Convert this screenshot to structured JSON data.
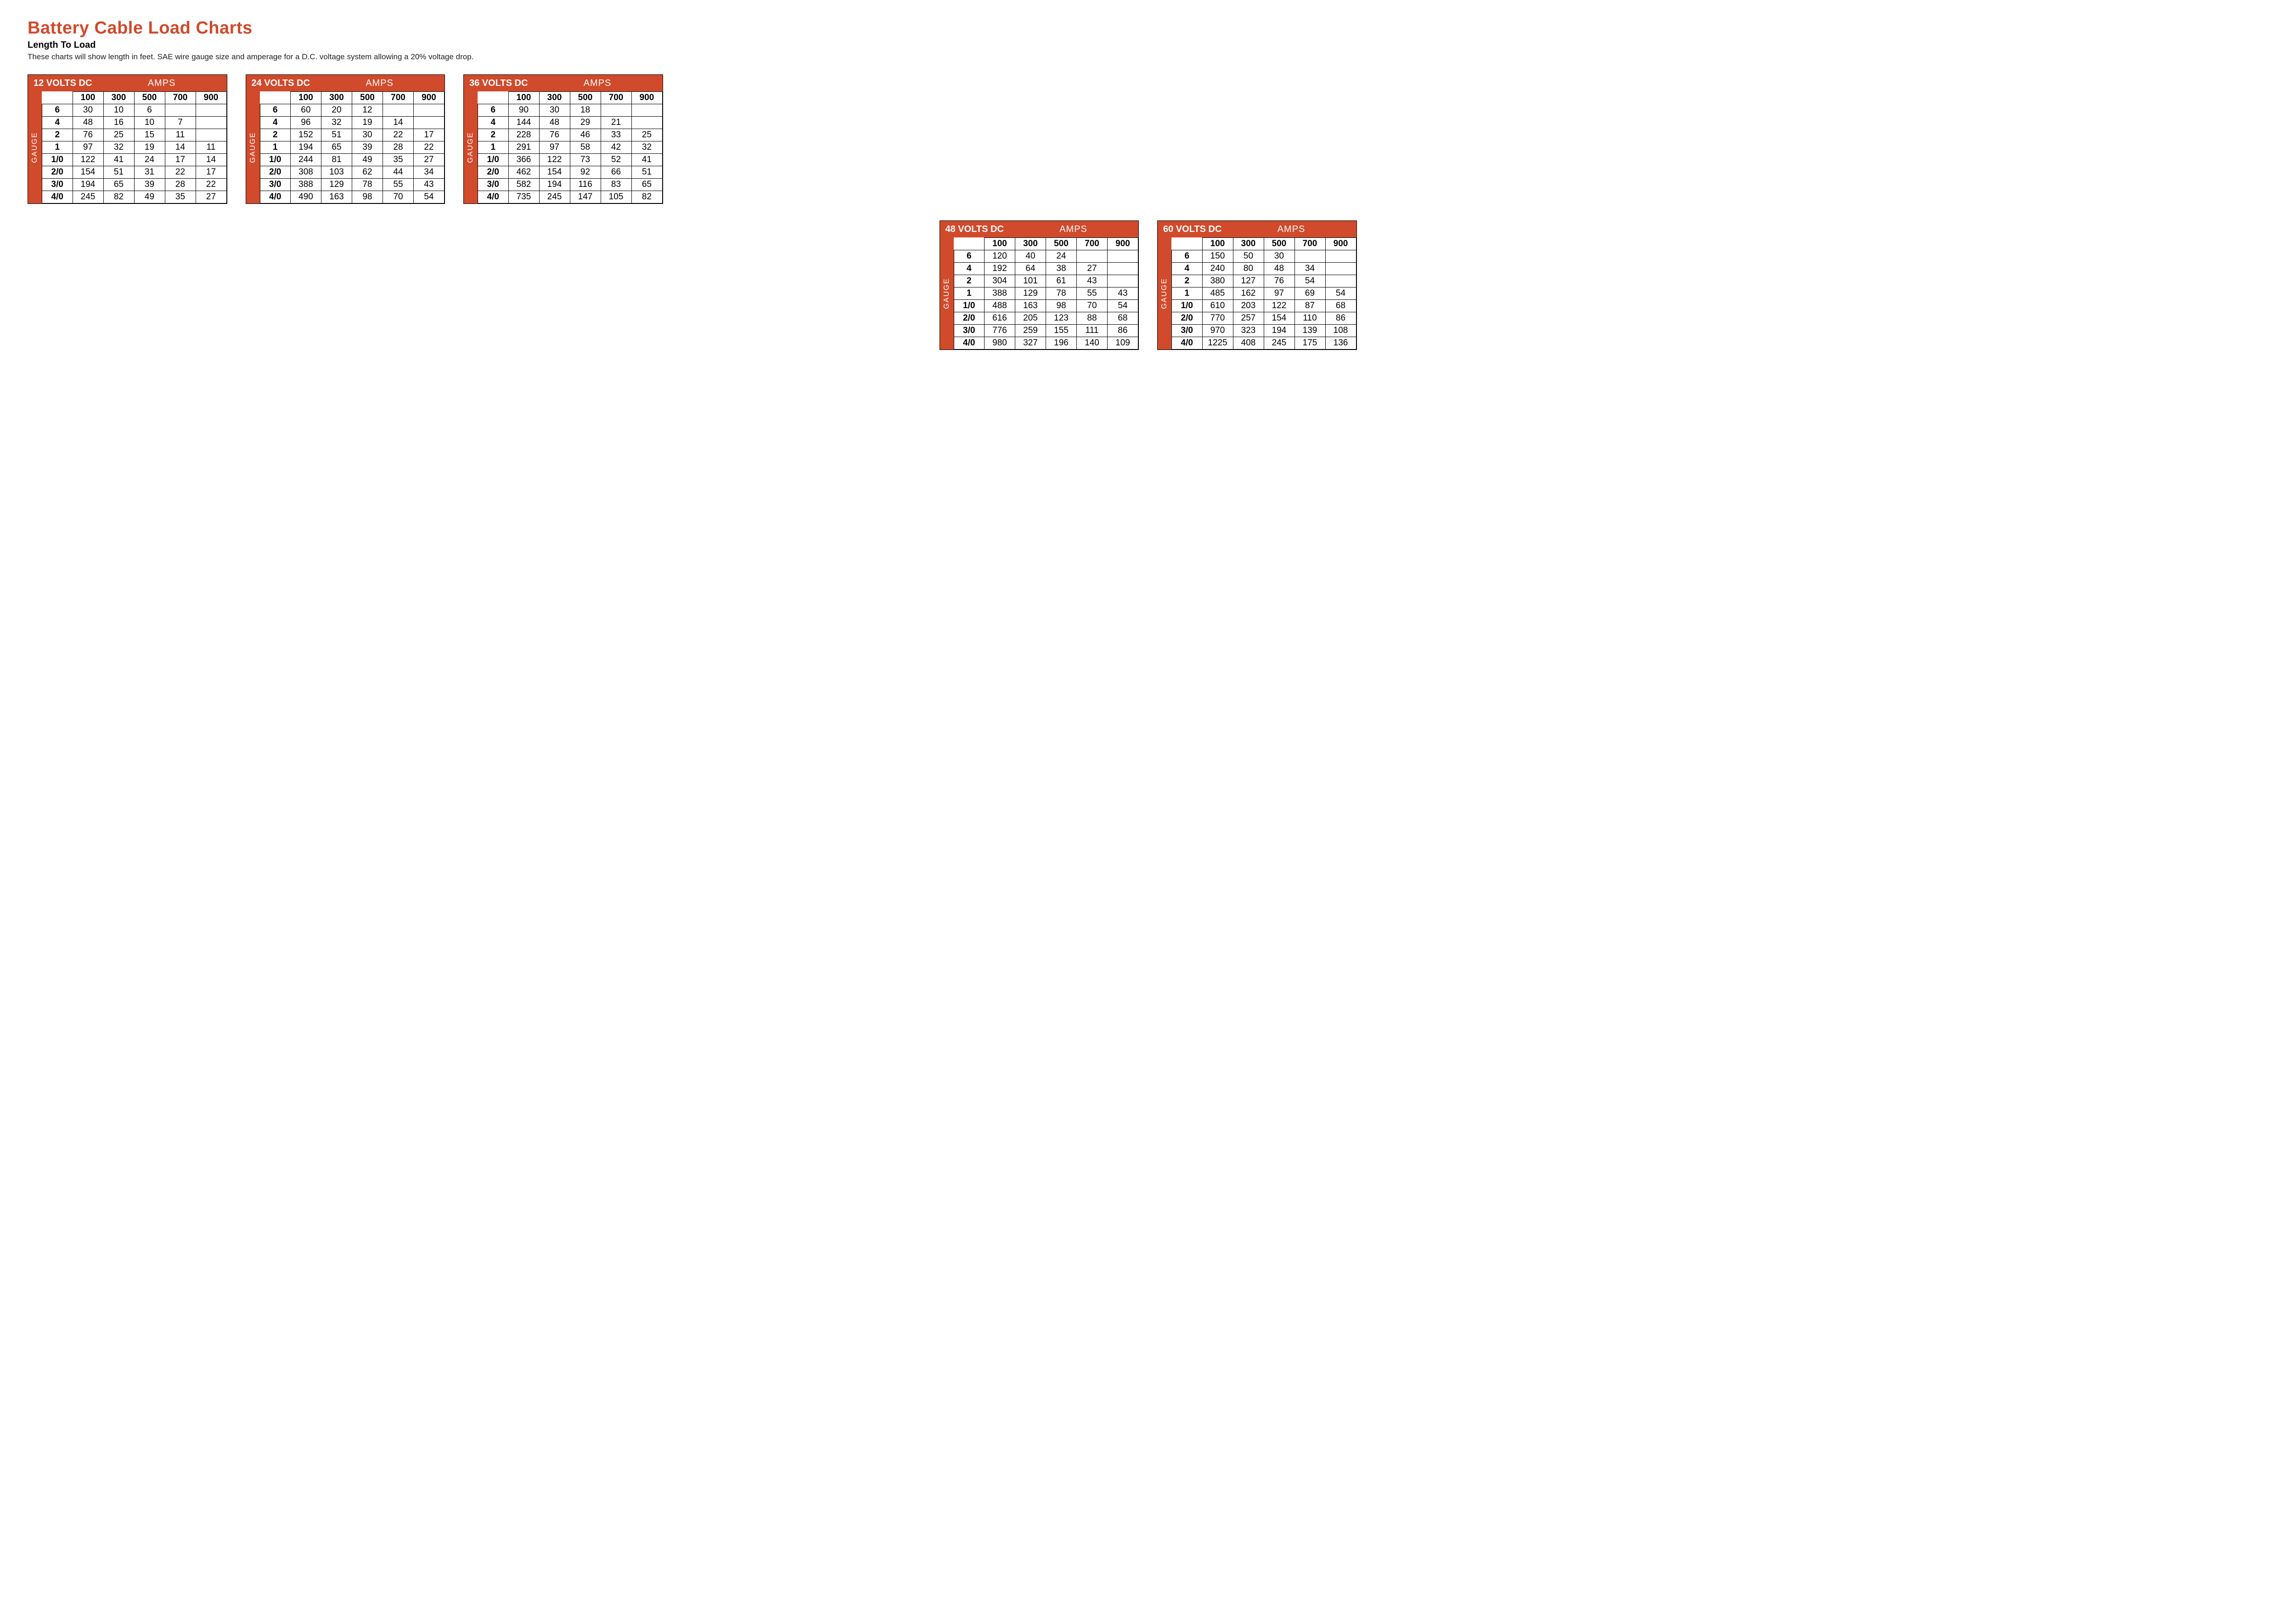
{
  "title": "Battery Cable Load Charts",
  "subtitle": "Length To Load",
  "intro": "These charts will show length in feet. SAE wire gauge size and amperage for a D.C. voltage system allowing a 20% voltage drop.",
  "colors": {
    "accent": "#d04a2b",
    "text": "#000000",
    "bg": "#ffffff",
    "border": "#000000"
  },
  "amps_label": "AMPS",
  "gauge_label": "GAUGE",
  "amps_header": [
    "100",
    "300",
    "500",
    "700",
    "900"
  ],
  "gauges": [
    "6",
    "4",
    "2",
    "1",
    "1/0",
    "2/0",
    "3/0",
    "4/0"
  ],
  "tables": [
    {
      "volt_label": "12  VOLTS DC",
      "rows": [
        [
          "30",
          "10",
          "6",
          "",
          ""
        ],
        [
          "48",
          "16",
          "10",
          "7",
          ""
        ],
        [
          "76",
          "25",
          "15",
          "11",
          ""
        ],
        [
          "97",
          "32",
          "19",
          "14",
          "11"
        ],
        [
          "122",
          "41",
          "24",
          "17",
          "14"
        ],
        [
          "154",
          "51",
          "31",
          "22",
          "17"
        ],
        [
          "194",
          "65",
          "39",
          "28",
          "22"
        ],
        [
          "245",
          "82",
          "49",
          "35",
          "27"
        ]
      ]
    },
    {
      "volt_label": "24  VOLTS DC",
      "rows": [
        [
          "60",
          "20",
          "12",
          "",
          ""
        ],
        [
          "96",
          "32",
          "19",
          "14",
          ""
        ],
        [
          "152",
          "51",
          "30",
          "22",
          "17"
        ],
        [
          "194",
          "65",
          "39",
          "28",
          "22"
        ],
        [
          "244",
          "81",
          "49",
          "35",
          "27"
        ],
        [
          "308",
          "103",
          "62",
          "44",
          "34"
        ],
        [
          "388",
          "129",
          "78",
          "55",
          "43"
        ],
        [
          "490",
          "163",
          "98",
          "70",
          "54"
        ]
      ]
    },
    {
      "volt_label": "36  VOLTS DC",
      "rows": [
        [
          "90",
          "30",
          "18",
          "",
          ""
        ],
        [
          "144",
          "48",
          "29",
          "21",
          ""
        ],
        [
          "228",
          "76",
          "46",
          "33",
          "25"
        ],
        [
          "291",
          "97",
          "58",
          "42",
          "32"
        ],
        [
          "366",
          "122",
          "73",
          "52",
          "41"
        ],
        [
          "462",
          "154",
          "92",
          "66",
          "51"
        ],
        [
          "582",
          "194",
          "116",
          "83",
          "65"
        ],
        [
          "735",
          "245",
          "147",
          "105",
          "82"
        ]
      ]
    },
    {
      "volt_label": "48  VOLTS DC",
      "rows": [
        [
          "120",
          "40",
          "24",
          "",
          ""
        ],
        [
          "192",
          "64",
          "38",
          "27",
          ""
        ],
        [
          "304",
          "101",
          "61",
          "43",
          ""
        ],
        [
          "388",
          "129",
          "78",
          "55",
          "43"
        ],
        [
          "488",
          "163",
          "98",
          "70",
          "54"
        ],
        [
          "616",
          "205",
          "123",
          "88",
          "68"
        ],
        [
          "776",
          "259",
          "155",
          "111",
          "86"
        ],
        [
          "980",
          "327",
          "196",
          "140",
          "109"
        ]
      ]
    },
    {
      "volt_label": "60  VOLTS DC",
      "rows": [
        [
          "150",
          "50",
          "30",
          "",
          ""
        ],
        [
          "240",
          "80",
          "48",
          "34",
          ""
        ],
        [
          "380",
          "127",
          "76",
          "54",
          ""
        ],
        [
          "485",
          "162",
          "97",
          "69",
          "54"
        ],
        [
          "610",
          "203",
          "122",
          "87",
          "68"
        ],
        [
          "770",
          "257",
          "154",
          "110",
          "86"
        ],
        [
          "970",
          "323",
          "194",
          "139",
          "108"
        ],
        [
          "1225",
          "408",
          "245",
          "175",
          "136"
        ]
      ]
    }
  ]
}
